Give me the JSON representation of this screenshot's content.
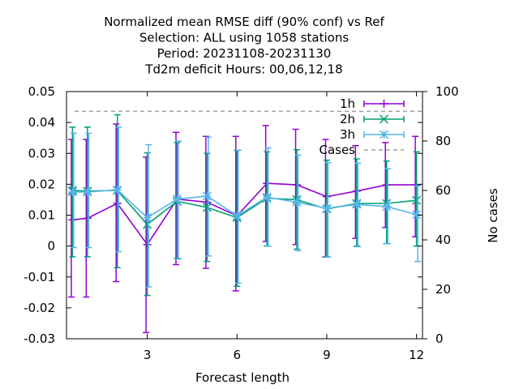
{
  "chart_data": {
    "type": "line",
    "title_lines": [
      "Normalized mean RMSE diff (90% conf) vs Ref",
      "Selection: ALL using  1058 stations",
      "Period: 20231108-20231130",
      "Td2m deficit   Hours:  00,06,12,18"
    ],
    "xlabel": "Forecast length",
    "ylabel": "",
    "y2label": "No cases",
    "xlim": [
      0.3,
      12.2
    ],
    "ylim": [
      -0.03,
      0.05
    ],
    "y2lim": [
      0,
      100
    ],
    "x_ticks": [
      3,
      6,
      9,
      12
    ],
    "y_ticks": [
      "0.05",
      "0.04",
      "0.03",
      "0.02",
      "0.01",
      "0",
      "-0.01",
      "-0.02",
      "-0.03"
    ],
    "y_tick_values": [
      0.05,
      0.04,
      0.03,
      0.02,
      0.01,
      0,
      -0.01,
      -0.02,
      -0.03
    ],
    "y2_ticks": [
      0,
      20,
      40,
      60,
      80,
      100
    ],
    "legend_position": "top-right",
    "series": [
      {
        "name": "1h",
        "color": "#9400d3",
        "marker": "plus",
        "x": [
          0.5,
          1,
          2,
          3,
          4,
          5,
          6,
          7,
          8,
          9,
          10,
          11,
          12
        ],
        "y": [
          0.0085,
          0.009,
          0.0138,
          0.0005,
          0.0152,
          0.0142,
          0.0098,
          0.0203,
          0.0198,
          0.016,
          0.0178,
          0.0198,
          0.0198
        ],
        "err_low": [
          -0.0165,
          -0.0165,
          -0.0115,
          -0.028,
          -0.006,
          -0.0072,
          -0.0145,
          0.0015,
          0.0005,
          -0.0035,
          0.0025,
          0.006,
          0.003
        ],
        "err_high": [
          0.0345,
          0.0345,
          0.0395,
          0.0288,
          0.0368,
          0.0355,
          0.0355,
          0.039,
          0.0378,
          0.0345,
          0.0325,
          0.0335,
          0.0355
        ]
      },
      {
        "name": "2h",
        "color": "#009e73",
        "marker": "cross",
        "x": [
          0.5,
          1,
          2,
          3,
          4,
          5,
          6,
          7,
          8,
          9,
          10,
          11,
          12
        ],
        "y": [
          0.018,
          0.0178,
          0.018,
          0.007,
          0.0145,
          0.0125,
          0.0092,
          0.0155,
          0.015,
          0.012,
          0.0138,
          0.0138,
          0.0148
        ],
        "err_low": [
          -0.0035,
          -0.0035,
          -0.007,
          -0.016,
          -0.004,
          -0.005,
          -0.013,
          0.0,
          -0.001,
          -0.0035,
          0.0,
          0.0008,
          0.0
        ],
        "err_high": [
          0.0385,
          0.0385,
          0.0425,
          0.0302,
          0.0335,
          0.03,
          0.031,
          0.0305,
          0.0312,
          0.0278,
          0.0282,
          0.0275,
          0.0305
        ]
      },
      {
        "name": "3h",
        "color": "#56b4e9",
        "marker": "star",
        "x": [
          0.5,
          1,
          2,
          3,
          4,
          5,
          6,
          7,
          8,
          9,
          10,
          11,
          12
        ],
        "y": [
          0.0175,
          0.0175,
          0.0182,
          0.0092,
          0.0152,
          0.0162,
          0.0098,
          0.0158,
          0.0142,
          0.0122,
          0.0135,
          0.0128,
          0.0102
        ],
        "err_low": [
          -0.0005,
          -0.0005,
          -0.0018,
          -0.0132,
          -0.0042,
          -0.0032,
          -0.012,
          0.0,
          -0.0015,
          -0.0035,
          -0.0002,
          0.0008,
          -0.005
        ],
        "err_high": [
          0.0365,
          0.0365,
          0.0385,
          0.0328,
          0.034,
          0.0352,
          0.031,
          0.0318,
          0.0295,
          0.027,
          0.0268,
          0.025,
          0.0195
        ]
      }
    ],
    "cases": {
      "name": "Cases",
      "color": "#a0a0a0",
      "axis": "y2",
      "value": 92
    }
  }
}
